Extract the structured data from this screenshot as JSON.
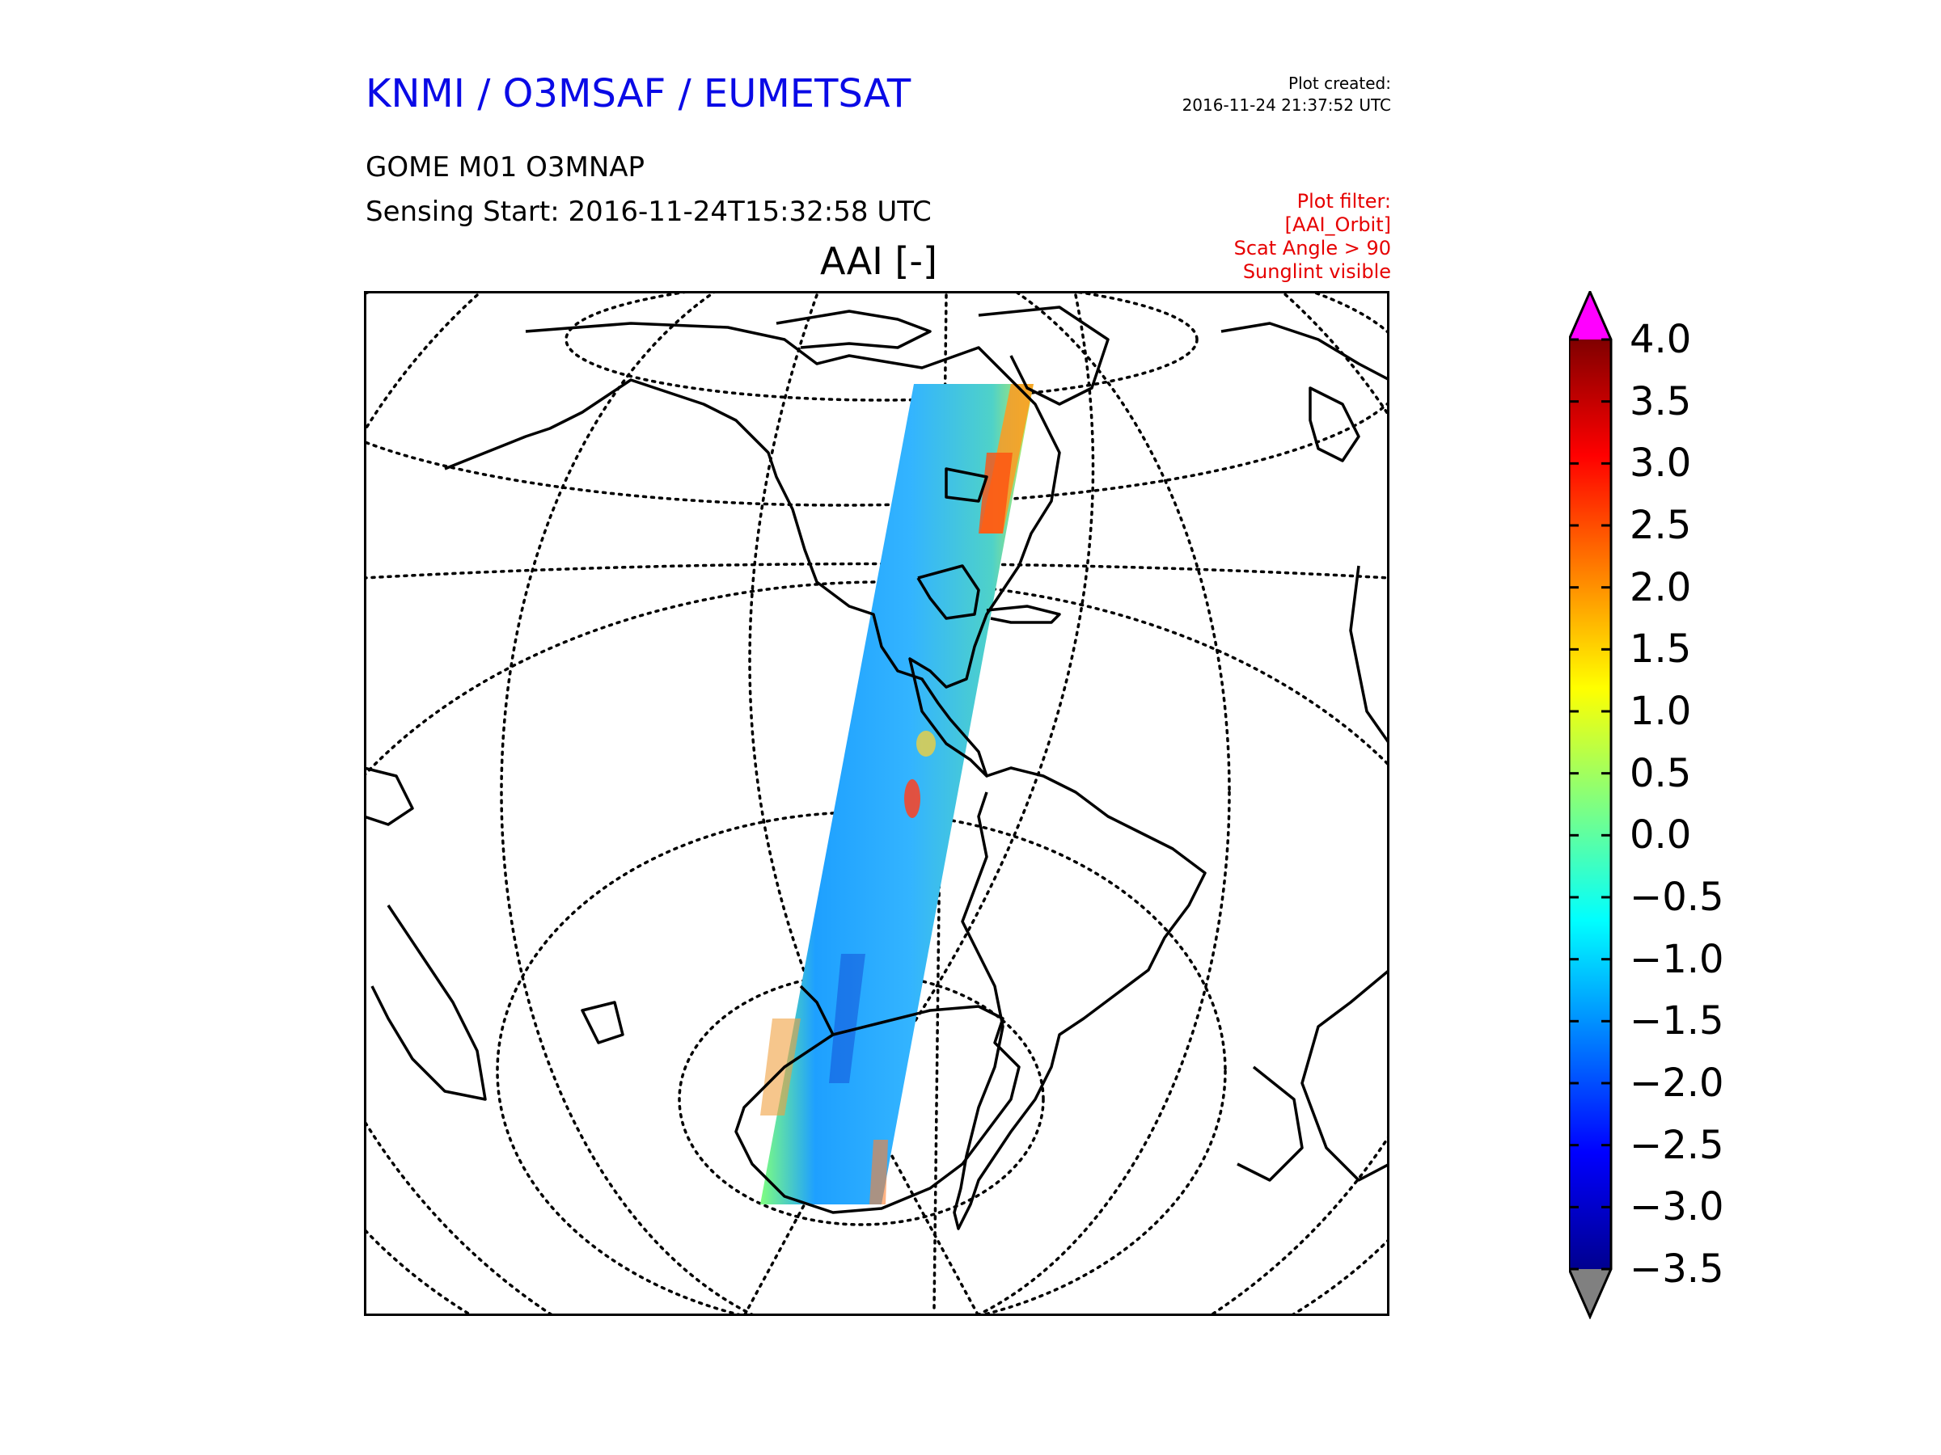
{
  "header": {
    "organization": "KNMI / O3MSAF / EUMETSAT",
    "plot_created_label": "Plot created:",
    "plot_created_value": "2016-11-24 21:37:52 UTC",
    "product": "GOME M01 O3MNAP",
    "sensing_start": "Sensing Start: 2016-11-24T15:32:58 UTC",
    "filter_lines": [
      "Plot filter:",
      "[AAI_Orbit]",
      "Scat Angle > 90",
      "Sunglint visible"
    ]
  },
  "map": {
    "title": "AAI [-]",
    "projection": "azimuthal / near-side view",
    "graticule": "dotted",
    "coastlines": "black"
  },
  "colorbar": {
    "ticks": [
      "4.0",
      "3.5",
      "3.0",
      "2.5",
      "2.0",
      "1.5",
      "1.0",
      "0.5",
      "0.0",
      "−0.5",
      "−1.0",
      "−1.5",
      "−2.0",
      "−2.5",
      "−3.0",
      "−3.5"
    ],
    "min": -3.5,
    "max": 4.0,
    "over_color": "#ff00ff",
    "under_color": "#808080",
    "colormap": [
      "#00008f",
      "#0000ff",
      "#0080ff",
      "#00ffff",
      "#80ff80",
      "#ffff00",
      "#ff8000",
      "#ff0000",
      "#800000"
    ]
  }
}
